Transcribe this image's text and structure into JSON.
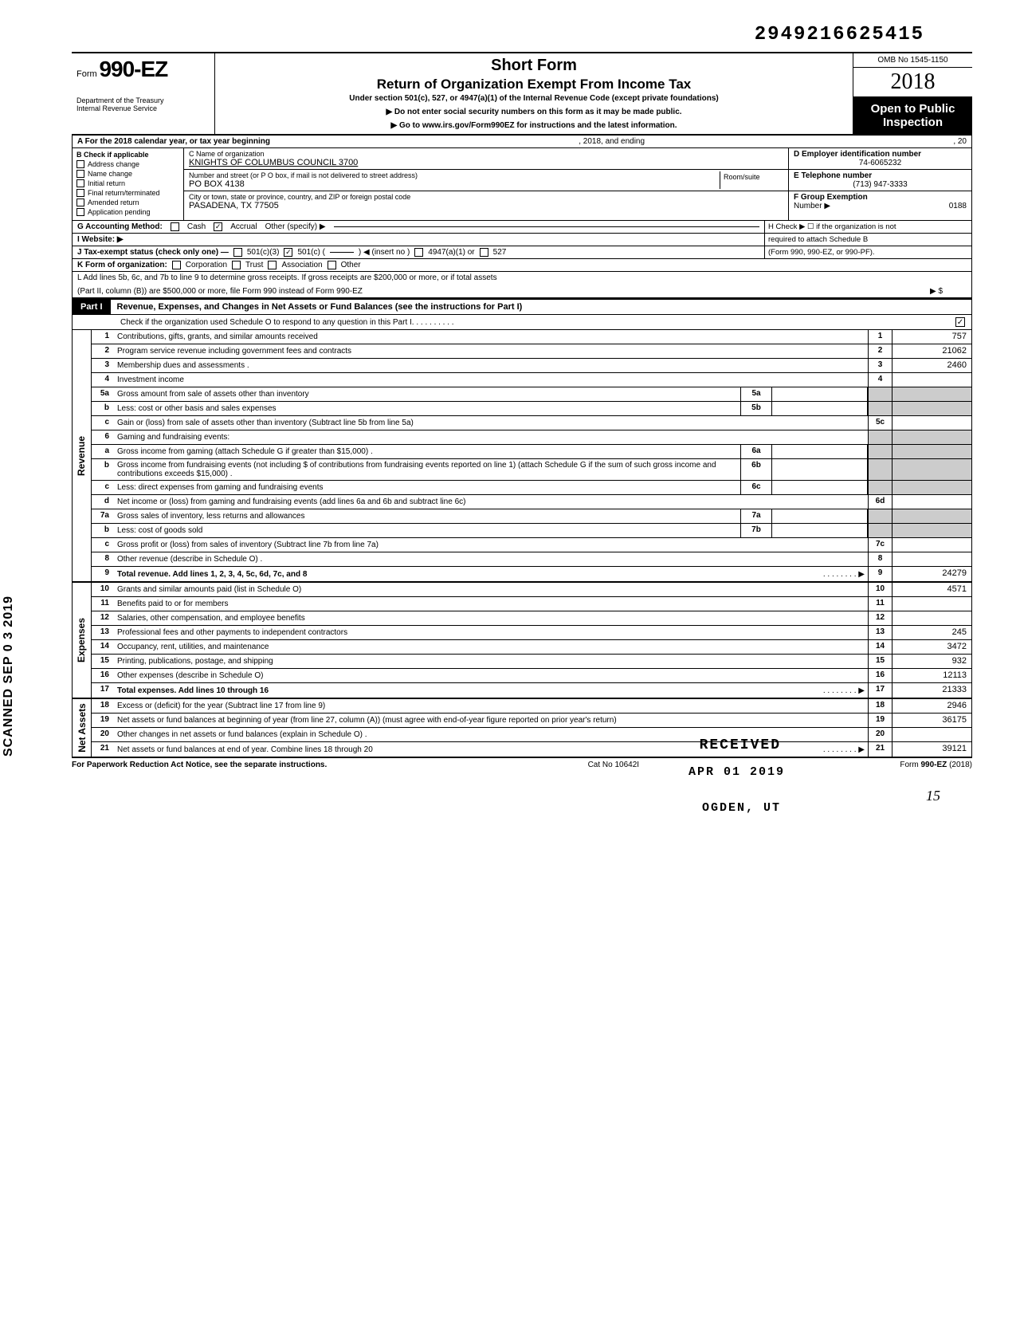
{
  "topNumber": "2949216625415",
  "header": {
    "formPrefix": "Form",
    "formNumber": "990-EZ",
    "shortForm": "Short Form",
    "returnTitle": "Return of Organization Exempt From Income Tax",
    "subtitle": "Under section 501(c), 527, or 4947(a)(1) of the Internal Revenue Code (except private foundations)",
    "warning": "▶ Do not enter social security numbers on this form as it may be made public.",
    "instructions": "▶ Go to www.irs.gov/Form990EZ for instructions and the latest information.",
    "dept": "Department of the Treasury",
    "irs": "Internal Revenue Service",
    "omb": "OMB No 1545-1150",
    "year": "2018",
    "openPublic1": "Open to Public",
    "openPublic2": "Inspection"
  },
  "sectionA": {
    "text": "A  For the 2018 calendar year, or tax year beginning",
    "mid": ", 2018, and ending",
    "end": ", 20"
  },
  "colB": {
    "header": "B  Check if applicable",
    "items": [
      "Address change",
      "Name change",
      "Initial return",
      "Final return/terminated",
      "Amended return",
      "Application pending"
    ]
  },
  "colC": {
    "nameLabel": "C  Name of organization",
    "nameVal": "KNIGHTS OF COLUMBUS COUNCIL 3700",
    "streetLabel": "Number and street (or P O  box, if mail is not delivered to street address)",
    "streetVal": "PO BOX 4138",
    "roomLabel": "Room/suite",
    "cityLabel": "City or town, state or province, country, and ZIP or foreign postal code",
    "cityVal": "PASADENA, TX 77505"
  },
  "colD": {
    "einLabel": "D Employer identification number",
    "einVal": "74-6065232",
    "telLabel": "E  Telephone number",
    "telVal": "(713) 947-3333",
    "groupLabel": "F  Group Exemption",
    "groupNum": "Number ▶",
    "groupVal": "0188"
  },
  "rowG": {
    "label": "G  Accounting Method:",
    "cash": "Cash",
    "accrual": "Accrual",
    "other": "Other (specify) ▶"
  },
  "rowH": {
    "text1": "H  Check ▶ ☐ if the organization is not",
    "text2": "required to attach Schedule B",
    "text3": "(Form 990, 990-EZ, or 990-PF)."
  },
  "rowI": {
    "label": "I   Website: ▶"
  },
  "rowJ": {
    "label": "J  Tax-exempt status (check only one) —",
    "opt1": "501(c)(3)",
    "opt2": "501(c) (",
    "insert": ") ◀ (insert no )",
    "opt3": "4947(a)(1) or",
    "opt4": "527"
  },
  "rowK": {
    "label": "K  Form of organization:",
    "corp": "Corporation",
    "trust": "Trust",
    "assoc": "Association",
    "other": "Other"
  },
  "rowL": {
    "line1": "L  Add lines 5b, 6c, and 7b to line 9 to determine gross receipts. If gross receipts are $200,000 or more, or if total assets",
    "line2": "(Part II, column (B)) are $500,000 or more, file Form 990 instead of Form 990-EZ",
    "arrow": "▶  $"
  },
  "part1": {
    "label": "Part I",
    "title": "Revenue, Expenses, and Changes in Net Assets or Fund Balances (see the instructions for Part I)",
    "schedO": "Check if the organization used Schedule O to respond to any question in this Part I"
  },
  "revenue": {
    "sideLabel": "Revenue",
    "rows": [
      {
        "n": "1",
        "d": "Contributions, gifts, grants, and similar amounts received",
        "fn": "1",
        "fv": "757"
      },
      {
        "n": "2",
        "d": "Program service revenue including government fees and contracts",
        "fn": "2",
        "fv": "21062"
      },
      {
        "n": "3",
        "d": "Membership dues and assessments .",
        "fn": "3",
        "fv": "2460"
      },
      {
        "n": "4",
        "d": "Investment income",
        "fn": "4",
        "fv": ""
      },
      {
        "n": "5a",
        "d": "Gross amount from sale of assets other than inventory",
        "ib": "5a"
      },
      {
        "n": "b",
        "d": "Less: cost or other basis and sales expenses",
        "ib": "5b"
      },
      {
        "n": "c",
        "d": "Gain or (loss) from sale of assets other than inventory (Subtract line 5b from line 5a)",
        "fn": "5c",
        "fv": ""
      },
      {
        "n": "6",
        "d": "Gaming and fundraising events:"
      },
      {
        "n": "a",
        "d": "Gross income from gaming (attach Schedule G if greater than $15,000) .",
        "ib": "6a"
      },
      {
        "n": "b",
        "d": "Gross income from fundraising events (not including  $                           of contributions from fundraising events reported on line 1) (attach Schedule G if the sum of such gross income and contributions exceeds $15,000) .",
        "ib": "6b"
      },
      {
        "n": "c",
        "d": "Less: direct expenses from gaming and fundraising events",
        "ib": "6c"
      },
      {
        "n": "d",
        "d": "Net income or (loss) from gaming and fundraising events (add lines 6a and 6b and subtract line 6c)",
        "fn": "6d",
        "fv": ""
      },
      {
        "n": "7a",
        "d": "Gross sales of inventory, less returns and allowances",
        "ib": "7a"
      },
      {
        "n": "b",
        "d": "Less: cost of goods sold",
        "ib": "7b"
      },
      {
        "n": "c",
        "d": "Gross profit or (loss) from sales of inventory (Subtract line 7b from line 7a)",
        "fn": "7c",
        "fv": ""
      },
      {
        "n": "8",
        "d": "Other revenue (describe in Schedule O) .",
        "fn": "8",
        "fv": ""
      },
      {
        "n": "9",
        "d": "Total revenue. Add lines 1, 2, 3, 4, 5c, 6d, 7c, and 8",
        "fn": "9",
        "fv": "24279",
        "bold": true,
        "arrow": true
      }
    ]
  },
  "expenses": {
    "sideLabel": "Expenses",
    "rows": [
      {
        "n": "10",
        "d": "Grants and similar amounts paid (list in Schedule O)",
        "fn": "10",
        "fv": "4571"
      },
      {
        "n": "11",
        "d": "Benefits paid to or for members",
        "fn": "11",
        "fv": ""
      },
      {
        "n": "12",
        "d": "Salaries, other compensation, and employee benefits",
        "fn": "12",
        "fv": ""
      },
      {
        "n": "13",
        "d": "Professional fees and other payments to independent contractors",
        "fn": "13",
        "fv": "245"
      },
      {
        "n": "14",
        "d": "Occupancy, rent, utilities, and maintenance",
        "fn": "14",
        "fv": "3472"
      },
      {
        "n": "15",
        "d": "Printing, publications, postage, and shipping",
        "fn": "15",
        "fv": "932"
      },
      {
        "n": "16",
        "d": "Other expenses (describe in Schedule O)",
        "fn": "16",
        "fv": "12113"
      },
      {
        "n": "17",
        "d": "Total expenses. Add lines 10 through 16",
        "fn": "17",
        "fv": "21333",
        "bold": true,
        "arrow": true
      }
    ]
  },
  "netassets": {
    "sideLabel": "Net Assets",
    "rows": [
      {
        "n": "18",
        "d": "Excess or (deficit) for the year (Subtract line 17 from line 9)",
        "fn": "18",
        "fv": "2946"
      },
      {
        "n": "19",
        "d": "Net assets or fund balances at beginning of year (from line 27, column (A)) (must agree with end-of-year figure reported on prior year's return)",
        "fn": "19",
        "fv": "36175"
      },
      {
        "n": "20",
        "d": "Other changes in net assets or fund balances (explain in Schedule O) .",
        "fn": "20",
        "fv": ""
      },
      {
        "n": "21",
        "d": "Net assets or fund balances at end of year. Combine lines 18 through 20",
        "fn": "21",
        "fv": "39121",
        "arrow": true
      }
    ]
  },
  "footer": {
    "left": "For Paperwork Reduction Act Notice, see the separate instructions.",
    "center": "Cat No 10642I",
    "right": "Form 990-EZ (2018)"
  },
  "stamps": {
    "received": "RECEIVED",
    "date": "APR 01 2019",
    "ogden": "OGDEN, UT",
    "scanned": "SCANNED SEP 0 3 2019",
    "pageNum": "15"
  }
}
